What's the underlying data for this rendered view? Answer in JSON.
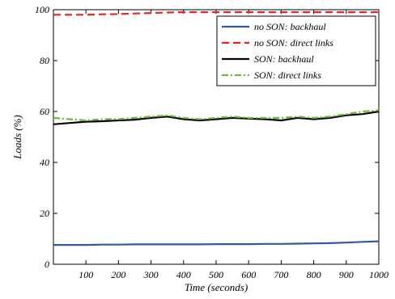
{
  "chart_data": {
    "type": "line",
    "title": "",
    "xlabel": "Time (seconds)",
    "ylabel": "Loads (%)",
    "xlim": [
      0,
      1000
    ],
    "ylim": [
      0,
      100
    ],
    "grid": false,
    "legend_position": "top-right",
    "x_ticks": [
      100,
      200,
      300,
      400,
      500,
      600,
      700,
      800,
      900,
      1000
    ],
    "y_ticks": [
      0,
      20,
      40,
      60,
      80,
      100
    ],
    "x": [
      0,
      50,
      100,
      150,
      200,
      250,
      300,
      350,
      400,
      450,
      500,
      550,
      600,
      650,
      700,
      750,
      800,
      850,
      900,
      950,
      1000
    ],
    "series": [
      {
        "name": "no SON: backhaul",
        "color": "#3355aa",
        "style": "solid",
        "values": [
          7.6,
          7.6,
          7.6,
          7.7,
          7.7,
          7.8,
          7.8,
          7.8,
          7.8,
          7.8,
          7.9,
          7.9,
          7.9,
          8.0,
          8.0,
          8.1,
          8.2,
          8.3,
          8.5,
          8.8,
          9.0
        ]
      },
      {
        "name": "no SON: direct links",
        "color": "#ee2222",
        "style": "dashed",
        "values": [
          98.0,
          98.0,
          98.0,
          98.2,
          98.3,
          98.5,
          98.7,
          98.9,
          99.0,
          99.0,
          99.0,
          99.0,
          99.0,
          99.0,
          99.0,
          99.0,
          99.0,
          99.0,
          99.0,
          99.0,
          99.0
        ]
      },
      {
        "name": "SON: backhaul",
        "color": "#000000",
        "style": "solid",
        "values": [
          55.0,
          55.5,
          56.0,
          56.2,
          56.5,
          56.8,
          57.5,
          58.0,
          57.0,
          56.5,
          57.0,
          57.5,
          57.2,
          57.0,
          56.5,
          57.5,
          57.0,
          57.5,
          58.5,
          59.0,
          60.0
        ]
      },
      {
        "name": "SON: direct links",
        "color": "#66bb33",
        "style": "dashdot",
        "values": [
          57.5,
          57.0,
          56.5,
          57.0,
          57.0,
          57.5,
          58.0,
          58.5,
          57.5,
          57.0,
          57.5,
          58.0,
          57.5,
          57.5,
          57.5,
          58.0,
          57.5,
          58.0,
          59.0,
          60.0,
          60.5
        ]
      }
    ]
  }
}
